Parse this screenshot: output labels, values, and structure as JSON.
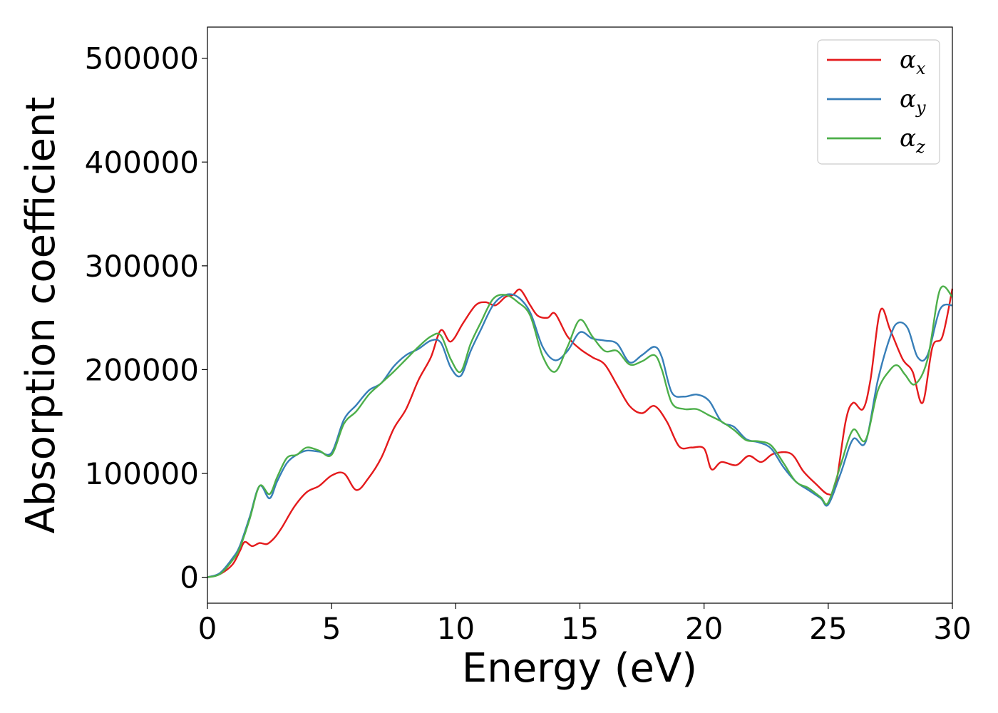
{
  "chart_data": {
    "type": "line",
    "xlabel": "Energy (eV)",
    "ylabel": "Absorption coefficient",
    "xlim": [
      0,
      30
    ],
    "ylim": [
      -25000,
      530000
    ],
    "xticks": [
      0,
      5,
      10,
      15,
      20,
      25,
      30
    ],
    "xtick_labels": [
      "0",
      "5",
      "10",
      "15",
      "20",
      "25",
      "30"
    ],
    "yticks": [
      0,
      100000,
      200000,
      300000,
      400000,
      500000
    ],
    "ytick_labels": [
      "0",
      "100000",
      "200000",
      "300000",
      "400000",
      "500000"
    ],
    "grid": false,
    "legend": {
      "position": "top-right",
      "entries": [
        {
          "symbol": "α",
          "subscript": "x",
          "color": "#e41a1c"
        },
        {
          "symbol": "α",
          "subscript": "y",
          "color": "#377eb8"
        },
        {
          "symbol": "α",
          "subscript": "z",
          "color": "#4daf4a"
        }
      ]
    },
    "series": [
      {
        "color": "#e41a1c",
        "points": [
          [
            0,
            0
          ],
          [
            0.5,
            3000
          ],
          [
            1,
            12000
          ],
          [
            1.3,
            25000
          ],
          [
            1.5,
            34000
          ],
          [
            1.8,
            30000
          ],
          [
            2.1,
            33000
          ],
          [
            2.4,
            32000
          ],
          [
            2.7,
            38000
          ],
          [
            3,
            48000
          ],
          [
            3.5,
            68000
          ],
          [
            4,
            82000
          ],
          [
            4.5,
            88000
          ],
          [
            5,
            98000
          ],
          [
            5.5,
            100000
          ],
          [
            6,
            84000
          ],
          [
            6.5,
            96000
          ],
          [
            7,
            115000
          ],
          [
            7.5,
            143000
          ],
          [
            8,
            162000
          ],
          [
            8.5,
            190000
          ],
          [
            9,
            212000
          ],
          [
            9.4,
            238000
          ],
          [
            9.8,
            227000
          ],
          [
            10.3,
            245000
          ],
          [
            10.8,
            262000
          ],
          [
            11.2,
            265000
          ],
          [
            11.6,
            262000
          ],
          [
            12,
            270000
          ],
          [
            12.3,
            272000
          ],
          [
            12.6,
            277000
          ],
          [
            13,
            262000
          ],
          [
            13.3,
            252000
          ],
          [
            13.7,
            250000
          ],
          [
            14,
            254000
          ],
          [
            14.5,
            232000
          ],
          [
            15,
            220000
          ],
          [
            15.5,
            212000
          ],
          [
            16,
            205000
          ],
          [
            16.5,
            185000
          ],
          [
            17,
            165000
          ],
          [
            17.5,
            158000
          ],
          [
            18,
            165000
          ],
          [
            18.5,
            150000
          ],
          [
            19,
            126000
          ],
          [
            19.5,
            125000
          ],
          [
            20,
            124000
          ],
          [
            20.3,
            104000
          ],
          [
            20.7,
            111000
          ],
          [
            21.3,
            108000
          ],
          [
            21.8,
            117000
          ],
          [
            22.3,
            111000
          ],
          [
            22.8,
            119000
          ],
          [
            23.5,
            119000
          ],
          [
            24,
            102000
          ],
          [
            24.5,
            90000
          ],
          [
            25,
            80000
          ],
          [
            25.3,
            88000
          ],
          [
            25.7,
            150000
          ],
          [
            26,
            168000
          ],
          [
            26.4,
            162000
          ],
          [
            26.7,
            190000
          ],
          [
            27.1,
            257000
          ],
          [
            27.5,
            238000
          ],
          [
            28,
            210000
          ],
          [
            28.4,
            198000
          ],
          [
            28.8,
            168000
          ],
          [
            29.2,
            222000
          ],
          [
            29.6,
            232000
          ],
          [
            30,
            278000
          ]
        ]
      },
      {
        "color": "#377eb8",
        "points": [
          [
            0,
            0
          ],
          [
            0.5,
            4000
          ],
          [
            1,
            18000
          ],
          [
            1.3,
            30000
          ],
          [
            1.7,
            58000
          ],
          [
            2.1,
            88000
          ],
          [
            2.5,
            76000
          ],
          [
            2.8,
            92000
          ],
          [
            3.2,
            110000
          ],
          [
            3.6,
            118000
          ],
          [
            4,
            122000
          ],
          [
            4.5,
            121000
          ],
          [
            5,
            120000
          ],
          [
            5.5,
            152000
          ],
          [
            6,
            166000
          ],
          [
            6.5,
            180000
          ],
          [
            7,
            187000
          ],
          [
            7.5,
            203000
          ],
          [
            8,
            214000
          ],
          [
            8.5,
            220000
          ],
          [
            9,
            228000
          ],
          [
            9.4,
            226000
          ],
          [
            9.8,
            202000
          ],
          [
            10.2,
            194000
          ],
          [
            10.6,
            218000
          ],
          [
            11,
            238000
          ],
          [
            11.5,
            262000
          ],
          [
            12,
            272000
          ],
          [
            12.5,
            270000
          ],
          [
            13,
            255000
          ],
          [
            13.5,
            222000
          ],
          [
            14,
            209000
          ],
          [
            14.5,
            218000
          ],
          [
            15,
            236000
          ],
          [
            15.5,
            230000
          ],
          [
            16,
            228000
          ],
          [
            16.5,
            225000
          ],
          [
            17,
            207000
          ],
          [
            17.5,
            214000
          ],
          [
            18,
            222000
          ],
          [
            18.3,
            212000
          ],
          [
            18.7,
            178000
          ],
          [
            19.2,
            174000
          ],
          [
            19.7,
            176000
          ],
          [
            20.2,
            170000
          ],
          [
            20.7,
            150000
          ],
          [
            21.2,
            145000
          ],
          [
            21.7,
            133000
          ],
          [
            22.2,
            130000
          ],
          [
            22.7,
            124000
          ],
          [
            23.2,
            106000
          ],
          [
            23.7,
            92000
          ],
          [
            24.2,
            84000
          ],
          [
            24.7,
            76000
          ],
          [
            25,
            70000
          ],
          [
            25.5,
            100000
          ],
          [
            26,
            133000
          ],
          [
            26.5,
            130000
          ],
          [
            27,
            190000
          ],
          [
            27.5,
            232000
          ],
          [
            27.8,
            245000
          ],
          [
            28.2,
            240000
          ],
          [
            28.6,
            212000
          ],
          [
            29,
            214000
          ],
          [
            29.5,
            258000
          ],
          [
            30,
            262000
          ]
        ]
      },
      {
        "color": "#4daf4a",
        "points": [
          [
            0,
            0
          ],
          [
            0.5,
            3000
          ],
          [
            1,
            16000
          ],
          [
            1.3,
            28000
          ],
          [
            1.7,
            56000
          ],
          [
            2.1,
            88000
          ],
          [
            2.5,
            80000
          ],
          [
            2.8,
            96000
          ],
          [
            3.2,
            115000
          ],
          [
            3.6,
            118000
          ],
          [
            4,
            125000
          ],
          [
            4.5,
            122000
          ],
          [
            5,
            118000
          ],
          [
            5.5,
            148000
          ],
          [
            6,
            160000
          ],
          [
            6.5,
            176000
          ],
          [
            7,
            187000
          ],
          [
            7.5,
            198000
          ],
          [
            8,
            210000
          ],
          [
            8.5,
            222000
          ],
          [
            9,
            232000
          ],
          [
            9.4,
            233000
          ],
          [
            9.8,
            210000
          ],
          [
            10.2,
            198000
          ],
          [
            10.6,
            225000
          ],
          [
            11,
            245000
          ],
          [
            11.5,
            268000
          ],
          [
            12,
            272000
          ],
          [
            12.5,
            265000
          ],
          [
            13,
            252000
          ],
          [
            13.5,
            213000
          ],
          [
            14,
            198000
          ],
          [
            14.5,
            222000
          ],
          [
            15,
            248000
          ],
          [
            15.5,
            232000
          ],
          [
            16,
            218000
          ],
          [
            16.5,
            218000
          ],
          [
            17,
            205000
          ],
          [
            17.5,
            208000
          ],
          [
            18,
            214000
          ],
          [
            18.3,
            200000
          ],
          [
            18.7,
            168000
          ],
          [
            19.2,
            162000
          ],
          [
            19.7,
            162000
          ],
          [
            20.2,
            156000
          ],
          [
            20.7,
            150000
          ],
          [
            21.2,
            142000
          ],
          [
            21.7,
            132000
          ],
          [
            22.2,
            131000
          ],
          [
            22.7,
            127000
          ],
          [
            23.2,
            110000
          ],
          [
            23.7,
            92000
          ],
          [
            24.2,
            86000
          ],
          [
            24.7,
            77000
          ],
          [
            25,
            72000
          ],
          [
            25.5,
            108000
          ],
          [
            26,
            142000
          ],
          [
            26.5,
            132000
          ],
          [
            27,
            180000
          ],
          [
            27.5,
            200000
          ],
          [
            27.8,
            204000
          ],
          [
            28.1,
            195000
          ],
          [
            28.5,
            186000
          ],
          [
            29,
            210000
          ],
          [
            29.5,
            277000
          ],
          [
            30,
            270000
          ]
        ]
      }
    ]
  }
}
